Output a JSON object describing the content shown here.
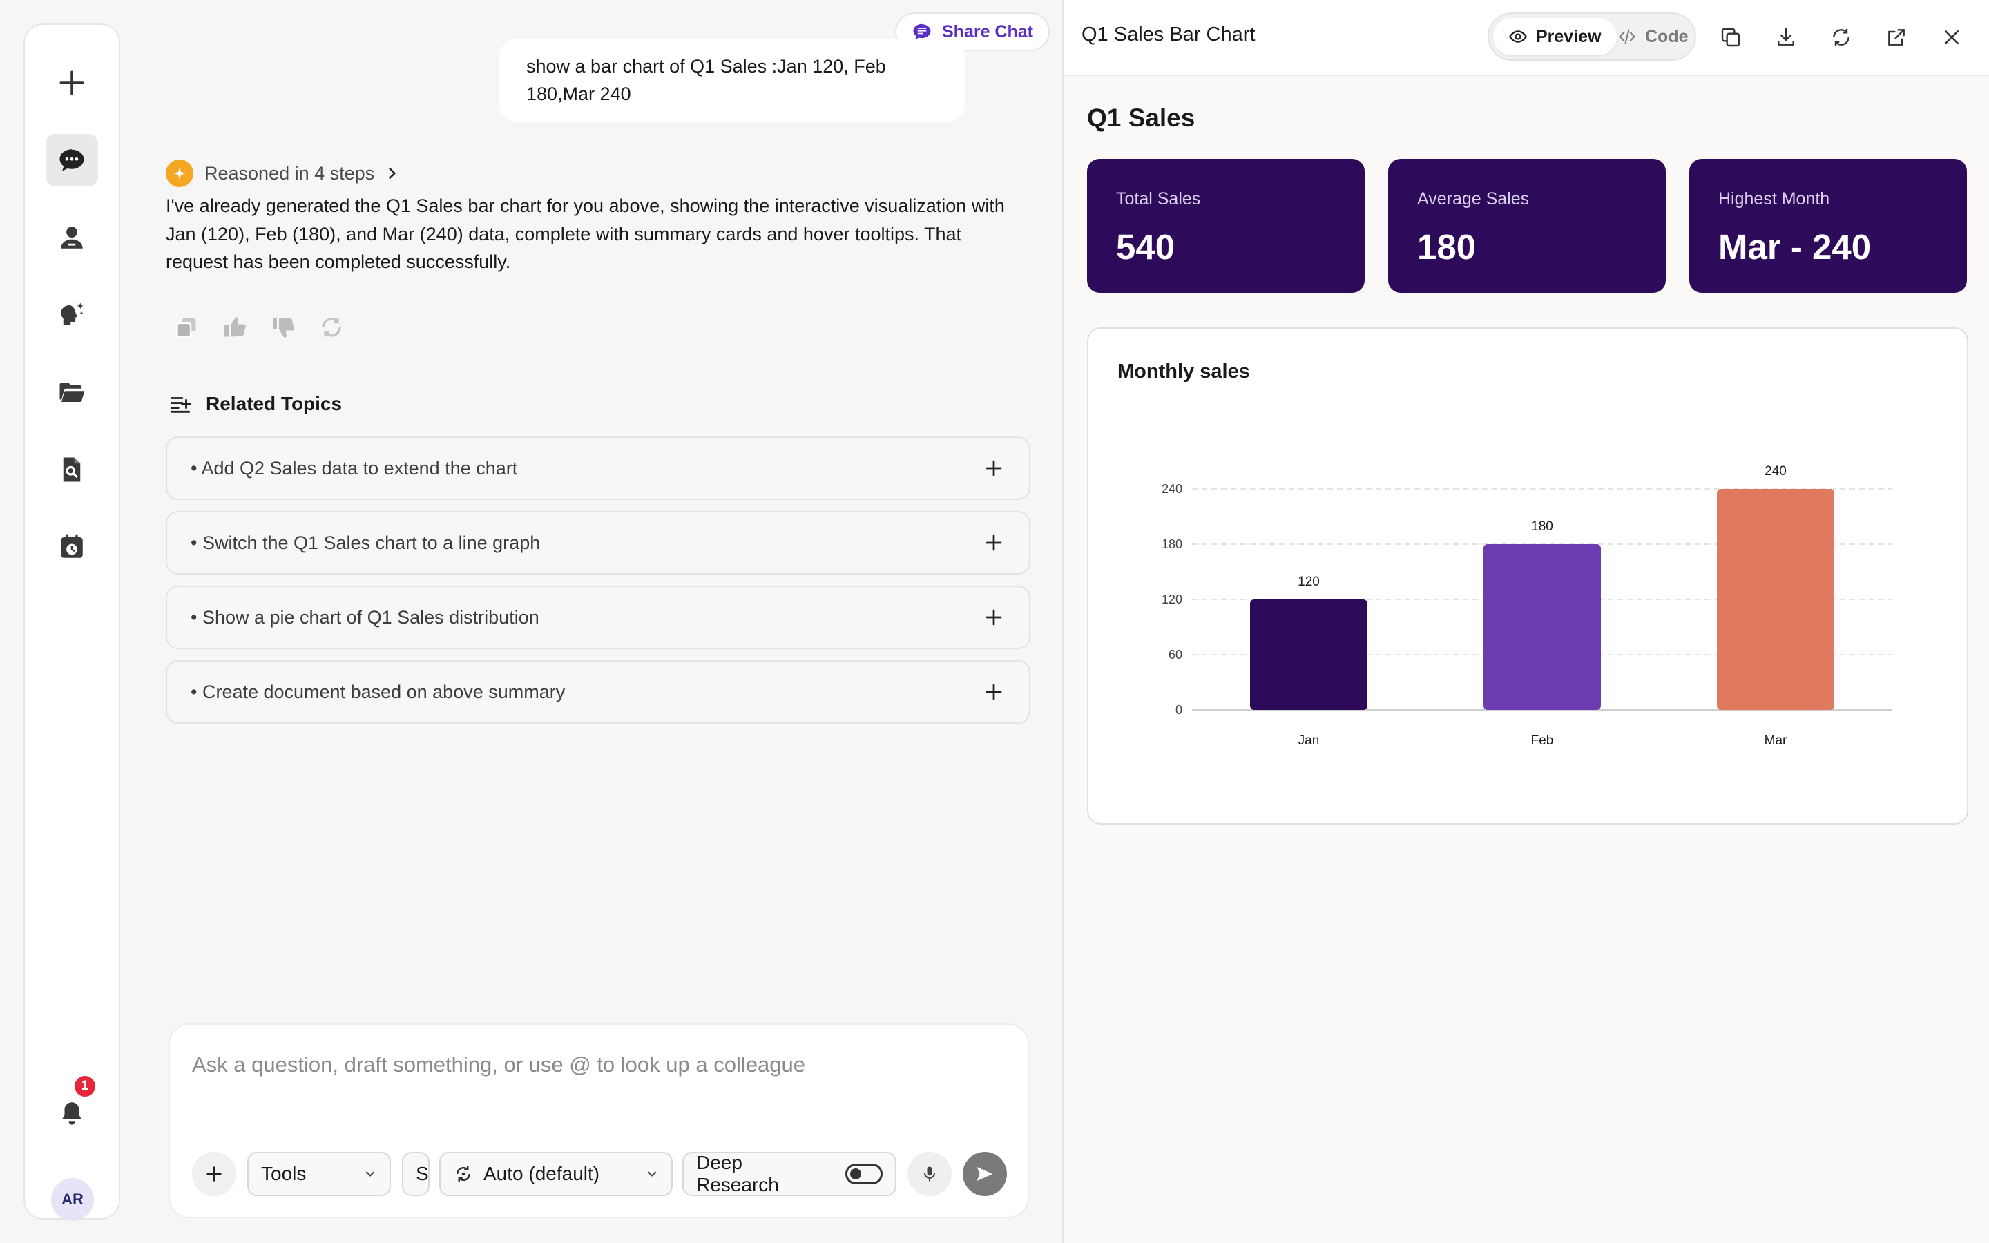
{
  "rail": {
    "items": [
      "new-chat",
      "chats",
      "contacts",
      "ai-assistant",
      "files",
      "document-search",
      "calendar"
    ],
    "notification_count": "1",
    "avatar_initials": "AR"
  },
  "chat": {
    "share_label": "Share Chat",
    "user_message": "show a bar chart of Q1 Sales :Jan 120, Feb 180,Mar 240",
    "reasoned_label": "Reasoned in 4 steps",
    "answer": "I've already generated the Q1 Sales bar chart for you above, showing the interactive visualization with Jan (120), Feb (180), and Mar (240) data, complete with summary cards and hover tooltips. That request has been completed successfully.",
    "related_title": "Related Topics",
    "related": [
      "• Add Q2 Sales data to extend the chart",
      "• Switch the Q1 Sales chart to a line graph",
      "• Show a pie chart of Q1 Sales distribution",
      "• Create document based on above summary"
    ]
  },
  "composer": {
    "placeholder": "Ask a question, draft something, or use @ to look up a colleague",
    "tools_label": "Tools",
    "s_label": "S",
    "model_label": "Auto (default)",
    "deep_research_label": "Deep Research",
    "deep_research_on": false
  },
  "panel": {
    "title": "Q1 Sales Bar Chart",
    "preview_label": "Preview",
    "code_label": "Code",
    "heading": "Q1 Sales",
    "cards": [
      {
        "label": "Total Sales",
        "value": "540"
      },
      {
        "label": "Average Sales",
        "value": "180"
      },
      {
        "label": "Highest Month",
        "value": "Mar - 240"
      }
    ],
    "chart_title": "Monthly sales"
  },
  "chart_data": {
    "type": "bar",
    "title": "Monthly sales",
    "categories": [
      "Jan",
      "Feb",
      "Mar"
    ],
    "values": [
      120,
      180,
      240
    ],
    "colors": [
      "#2d0a5a",
      "#6c3db0",
      "#e07a5f"
    ],
    "yticks": [
      0,
      60,
      120,
      180,
      240
    ],
    "ylim": [
      0,
      240
    ],
    "grid": true,
    "xlabel": "",
    "ylabel": ""
  }
}
